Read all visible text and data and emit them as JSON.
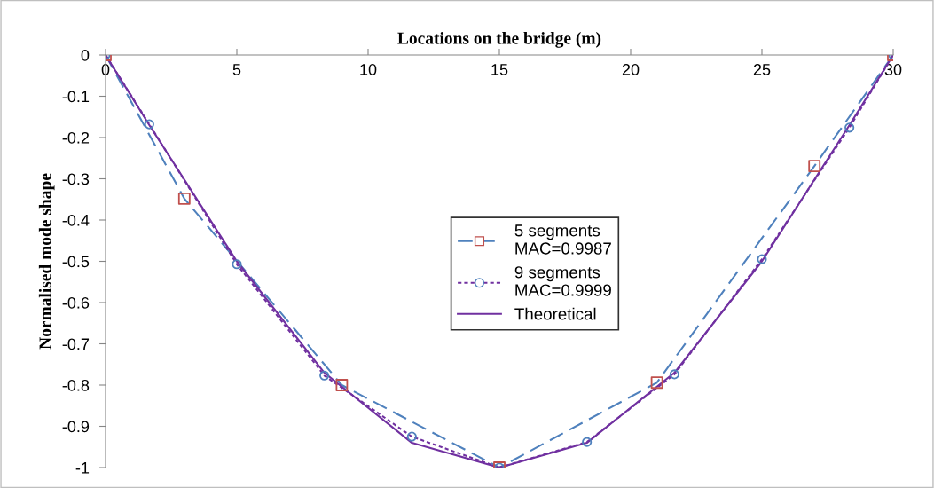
{
  "chart_data": {
    "type": "line",
    "xlabel": "Locations on the bridge (m)",
    "ylabel": "Normalised mode shape",
    "xlim": [
      0,
      30
    ],
    "xticks": [
      0,
      5,
      10,
      15,
      20,
      25,
      30
    ],
    "ylim": [
      -1,
      0
    ],
    "yticks": [
      0,
      -0.1,
      -0.2,
      -0.3,
      -0.4,
      -0.5,
      -0.6,
      -0.7,
      -0.8,
      -0.9,
      -1
    ],
    "grid": false,
    "legend": "center",
    "series": [
      {
        "name": "5 segments\nMAC=0.9987",
        "color": "#4f81bd",
        "line_style": "dashed",
        "marker": "square",
        "colors": [
          "#c0504d",
          "#c0504d",
          "#c0504d",
          "#c0504d",
          "#c0504d",
          "#c0504d",
          "#c0504d"
        ],
        "x": [
          0,
          3,
          9,
          15,
          21,
          27,
          30
        ],
        "values": [
          0,
          -0.348,
          -0.8,
          -1,
          -0.794,
          -0.269,
          0
        ]
      },
      {
        "name": "9 segments\nMAC=0.9999",
        "color": "#7030a0",
        "line_style": "dotted",
        "marker": "circle",
        "colors": [
          "#4f81bd",
          "#4f81bd",
          "#4f81bd",
          "#4f81bd",
          "#4f81bd",
          "#4f81bd",
          "#4f81bd",
          "#4f81bd",
          "#4f81bd",
          "#4f81bd",
          "#4f81bd"
        ],
        "x": [
          0,
          1.667,
          5,
          8.333,
          11.667,
          15,
          18.333,
          21.667,
          25,
          28.333,
          30
        ],
        "values": [
          0,
          -0.168,
          -0.507,
          -0.777,
          -0.925,
          -1,
          -0.938,
          -0.774,
          -0.495,
          -0.176,
          0
        ]
      },
      {
        "name": "Theoretical",
        "color": "#7030a0",
        "line_style": "solid",
        "marker": "none",
        "x": [
          0,
          1.667,
          5,
          8.333,
          11.667,
          15,
          18.333,
          21.667,
          25,
          28.333,
          30
        ],
        "values": [
          0,
          -0.17,
          -0.5,
          -0.77,
          -0.94,
          -1,
          -0.94,
          -0.77,
          -0.5,
          -0.17,
          0
        ]
      }
    ]
  }
}
